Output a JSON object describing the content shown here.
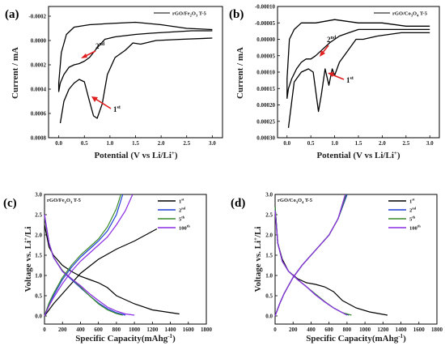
{
  "chart_data": [
    {
      "panel": "(a)",
      "type": "line",
      "xlabel": "Potential (V vs Li/Li+)",
      "ylabel": "Current / mA",
      "xlim": [
        -0.2,
        3.2
      ],
      "ylim": [
        -0.00028,
        0.0008
      ],
      "y_inverted": true,
      "xticks": [
        0.0,
        0.5,
        1.0,
        1.5,
        2.0,
        2.5,
        3.0
      ],
      "yticks": [
        -0.0002,
        0.0,
        0.0002,
        0.0004,
        0.0006,
        0.0008
      ],
      "ytick_labels": [
        "-0.0002",
        "0.0000",
        "0.0002",
        "0.0004",
        "0.0006",
        "0.0008"
      ],
      "legend": "rGO/Fe2O3 T-5",
      "annotations": [
        {
          "label": "2nd",
          "x": 0.7,
          "y": 0.00015
        },
        {
          "label": "1st",
          "x": 1.1,
          "y": 0.00048
        }
      ],
      "series": [
        {
          "x": [
            3.0,
            2.6,
            2.2,
            1.8,
            1.5,
            1.3,
            1.1,
            0.9,
            0.75,
            0.6,
            0.5,
            0.4,
            0.3,
            0.2,
            0.1,
            0.03,
            0.0,
            0.0,
            0.05,
            0.15,
            0.3,
            0.6,
            1.0,
            1.5,
            2.0,
            2.5,
            3.0
          ],
          "y": [
            -8e-05,
            -8e-05,
            -7e-05,
            -6e-05,
            -5e-05,
            -4e-05,
            -3e-05,
            -1e-05,
            6e-05,
            0.00014,
            0.00017,
            0.00019,
            0.0002,
            0.00022,
            0.00028,
            0.00035,
            0.00042,
            0.00035,
            0.0001,
            -5e-05,
            -0.00011,
            -0.00013,
            -0.00014,
            -0.00015,
            -0.00013,
            -0.0001,
            -9e-05
          ]
        },
        {
          "x": [
            3.0,
            2.4,
            1.9,
            1.6,
            1.45,
            1.3,
            1.1,
            0.95,
            0.85,
            0.75,
            0.68,
            0.6,
            0.5,
            0.4,
            0.3,
            0.2,
            0.1,
            0.03
          ],
          "y": [
            -2e-05,
            -1e-05,
            0.0,
            3e-05,
            2e-05,
            8e-05,
            0.00014,
            0.00028,
            0.00052,
            0.00064,
            0.00062,
            0.0005,
            0.00034,
            0.00032,
            0.00035,
            0.0004,
            0.0005,
            0.00068
          ]
        }
      ]
    },
    {
      "panel": "(b)",
      "type": "line",
      "xlabel": "Potential (V vs Li/Li+)",
      "ylabel": "Current / mA",
      "xlim": [
        -0.2,
        3.2
      ],
      "ylim": [
        -0.0001,
        0.0003
      ],
      "y_inverted": true,
      "xticks": [
        0.0,
        0.5,
        1.0,
        1.5,
        2.0,
        2.5,
        3.0
      ],
      "yticks": [
        -0.0001,
        -5e-05,
        0.0,
        5e-05,
        0.0001,
        0.00015,
        0.0002,
        0.00025,
        0.0003
      ],
      "ytick_labels": [
        "-0.00010",
        "-0.00005",
        "0.00000",
        "0.00005",
        "0.00010",
        "0.00015",
        "0.00020",
        "0.00025",
        "0.00030"
      ],
      "legend": "rGO/Co3O4 T-5",
      "annotations": [
        {
          "label": "2nd",
          "x": 0.85,
          "y": 3e-05
        },
        {
          "label": "1st",
          "x": 1.1,
          "y": 0.00012
        }
      ],
      "series": [
        {
          "x": [
            3.0,
            2.6,
            2.2,
            1.8,
            1.5,
            1.3,
            1.1,
            0.9,
            0.75,
            0.6,
            0.5,
            0.4,
            0.3,
            0.2,
            0.1,
            0.03,
            0.0,
            0.0,
            0.05,
            0.15,
            0.3,
            0.6,
            1.0,
            1.5,
            2.0,
            2.5,
            3.0
          ],
          "y": [
            -3e-05,
            -3e-05,
            -3e-05,
            -3e-05,
            -3e-05,
            -2e-05,
            -1e-05,
            1e-05,
            3e-05,
            5e-05,
            6e-05,
            6e-05,
            7e-05,
            9e-05,
            0.00012,
            0.00015,
            0.00018,
            0.00012,
            0.0,
            -3e-05,
            -5e-05,
            -5e-05,
            -6e-05,
            -5e-05,
            -5e-05,
            -4e-05,
            -4e-05
          ]
        },
        {
          "x": [
            3.0,
            2.4,
            1.9,
            1.6,
            1.45,
            1.3,
            1.1,
            1.0,
            0.95,
            0.88,
            0.8,
            0.72,
            0.66,
            0.55,
            0.45,
            0.3,
            0.15,
            0.03
          ],
          "y": [
            -2e-05,
            -2e-05,
            -1e-05,
            0.0,
            0.0,
            3e-05,
            7e-05,
            0.00011,
            9e-05,
            0.00014,
            9e-05,
            0.00017,
            0.00022,
            0.0001,
            9e-05,
            0.0001,
            0.00013,
            0.00027
          ]
        }
      ]
    },
    {
      "panel": "(c)",
      "type": "line",
      "xlabel": "Specific Capacity(mAhg-1)",
      "ylabel": "Voltage vs. Li+/Li",
      "xlim": [
        0,
        1800
      ],
      "ylim": [
        -0.2,
        3.0
      ],
      "xticks": [
        0,
        200,
        400,
        600,
        800,
        1000,
        1200,
        1400,
        1600,
        1800
      ],
      "yticks": [
        0.0,
        0.5,
        1.0,
        1.5,
        2.0,
        2.5,
        3.0
      ],
      "legend_title": "rGO/Fe2O3 T-5",
      "colors": {
        "1st": "#000000",
        "2nd": "#1f3fd6",
        "5th": "#3a8a2a",
        "100th": "#8a2be2"
      },
      "series": [
        {
          "name": "1st",
          "color_key": "1st",
          "discharge": {
            "x": [
              0,
              50,
              100,
              200,
              300,
              400,
              500,
              600,
              700,
              800,
              1000,
              1200,
              1500
            ],
            "y": [
              2.25,
              1.7,
              1.5,
              1.25,
              1.1,
              0.98,
              0.9,
              0.82,
              0.7,
              0.5,
              0.3,
              0.15,
              0.05
            ]
          },
          "charge": {
            "x": [
              0,
              50,
              100,
              200,
              300,
              400,
              600,
              800,
              1000,
              1250
            ],
            "y": [
              0.0,
              0.15,
              0.3,
              0.55,
              0.8,
              1.05,
              1.4,
              1.65,
              1.85,
              2.15
            ]
          }
        },
        {
          "name": "2nd",
          "color_key": "2nd",
          "discharge": {
            "x": [
              0,
              50,
              100,
              200,
              300,
              400,
              500,
              600,
              700,
              800,
              900
            ],
            "y": [
              2.5,
              1.8,
              1.45,
              1.1,
              0.9,
              0.7,
              0.5,
              0.32,
              0.18,
              0.08,
              0.02
            ]
          },
          "charge": {
            "x": [
              0,
              50,
              100,
              200,
              300,
              400,
              500,
              600,
              700,
              800,
              870
            ],
            "y": [
              0.0,
              0.3,
              0.5,
              0.9,
              1.2,
              1.45,
              1.65,
              1.85,
              2.1,
              2.5,
              3.0
            ]
          }
        },
        {
          "name": "5th",
          "color_key": "5th",
          "discharge": {
            "x": [
              0,
              50,
              100,
              200,
              300,
              400,
              500,
              600,
              700,
              800,
              870
            ],
            "y": [
              2.45,
              1.8,
              1.45,
              1.12,
              0.92,
              0.72,
              0.5,
              0.3,
              0.15,
              0.06,
              0.02
            ]
          },
          "charge": {
            "x": [
              0,
              50,
              100,
              200,
              300,
              400,
              500,
              600,
              700,
              800,
              850
            ],
            "y": [
              0.0,
              0.32,
              0.55,
              0.95,
              1.25,
              1.5,
              1.7,
              1.9,
              2.2,
              2.65,
              3.0
            ]
          }
        },
        {
          "name": "100th",
          "color_key": "100th",
          "discharge": {
            "x": [
              0,
              50,
              100,
              200,
              300,
              400,
              500,
              600,
              700,
              800,
              900,
              1000
            ],
            "y": [
              2.5,
              1.8,
              1.45,
              1.1,
              0.92,
              0.75,
              0.55,
              0.38,
              0.22,
              0.12,
              0.05,
              0.02
            ]
          },
          "charge": {
            "x": [
              0,
              50,
              100,
              200,
              300,
              400,
              500,
              600,
              700,
              800,
              900,
              980
            ],
            "y": [
              0.0,
              0.25,
              0.45,
              0.8,
              1.1,
              1.35,
              1.55,
              1.75,
              1.95,
              2.25,
              2.6,
              3.0
            ]
          }
        }
      ]
    },
    {
      "panel": "(d)",
      "type": "line",
      "xlabel": "Specific Capacity(mAhg-1)",
      "ylabel": "Voltage vs. Li+/Li",
      "xlim": [
        0,
        1800
      ],
      "ylim": [
        -0.2,
        3.0
      ],
      "xticks": [
        0,
        200,
        400,
        600,
        800,
        1000,
        1200,
        1400,
        1600,
        1800
      ],
      "yticks": [
        0.0,
        0.5,
        1.0,
        1.5,
        2.0,
        2.5,
        3.0
      ],
      "legend_title": "rGO/Co3O4 T-5",
      "colors": {
        "1st": "#000000",
        "2nd": "#1f3fd6",
        "5th": "#3a8a2a",
        "100th": "#8a2be2"
      },
      "series": [
        {
          "name": "1st",
          "color_key": "1st",
          "discharge": {
            "x": [
              0,
              30,
              80,
              150,
              250,
              350,
              450,
              550,
              650,
              750,
              900,
              1050,
              1250
            ],
            "y": [
              2.7,
              1.8,
              1.4,
              1.1,
              0.92,
              0.82,
              0.78,
              0.72,
              0.6,
              0.38,
              0.2,
              0.1,
              0.02
            ]
          },
          "charge": {
            "x": [
              0,
              50,
              100,
              200,
              300,
              400,
              500,
              600,
              700,
              800
            ],
            "y": [
              0.0,
              0.3,
              0.55,
              0.95,
              1.25,
              1.5,
              1.75,
              2.0,
              2.4,
              3.0
            ]
          }
        },
        {
          "name": "2nd",
          "color_key": "2nd",
          "discharge": {
            "x": [
              0,
              30,
              80,
              150,
              250,
              350,
              450,
              550,
              650,
              750,
              820
            ],
            "y": [
              2.7,
              1.8,
              1.35,
              1.1,
              0.9,
              0.72,
              0.52,
              0.35,
              0.2,
              0.08,
              0.02
            ]
          },
          "charge": {
            "x": [
              0,
              50,
              100,
              200,
              300,
              400,
              500,
              600,
              700,
              800
            ],
            "y": [
              0.0,
              0.3,
              0.55,
              0.95,
              1.25,
              1.5,
              1.75,
              2.0,
              2.4,
              3.0
            ]
          }
        },
        {
          "name": "5th",
          "color_key": "5th",
          "discharge": {
            "x": [
              0,
              30,
              80,
              150,
              250,
              350,
              450,
              550,
              650,
              750,
              850
            ],
            "y": [
              2.7,
              1.8,
              1.35,
              1.1,
              0.9,
              0.72,
              0.54,
              0.36,
              0.2,
              0.08,
              0.02
            ]
          },
          "charge": {
            "x": [
              0,
              50,
              100,
              200,
              300,
              400,
              500,
              600,
              700,
              790
            ],
            "y": [
              0.0,
              0.3,
              0.55,
              0.95,
              1.25,
              1.5,
              1.75,
              2.0,
              2.4,
              3.0
            ]
          }
        },
        {
          "name": "100th",
          "color_key": "100th",
          "discharge": {
            "x": [
              0,
              30,
              80,
              150,
              250,
              350,
              450,
              550,
              650,
              750,
              800
            ],
            "y": [
              2.6,
              1.8,
              1.35,
              1.1,
              0.9,
              0.72,
              0.52,
              0.35,
              0.2,
              0.08,
              0.02
            ]
          },
          "charge": {
            "x": [
              0,
              50,
              100,
              200,
              300,
              400,
              500,
              600,
              700,
              780
            ],
            "y": [
              0.0,
              0.3,
              0.55,
              0.95,
              1.25,
              1.5,
              1.75,
              2.0,
              2.4,
              3.0
            ]
          }
        }
      ]
    }
  ]
}
